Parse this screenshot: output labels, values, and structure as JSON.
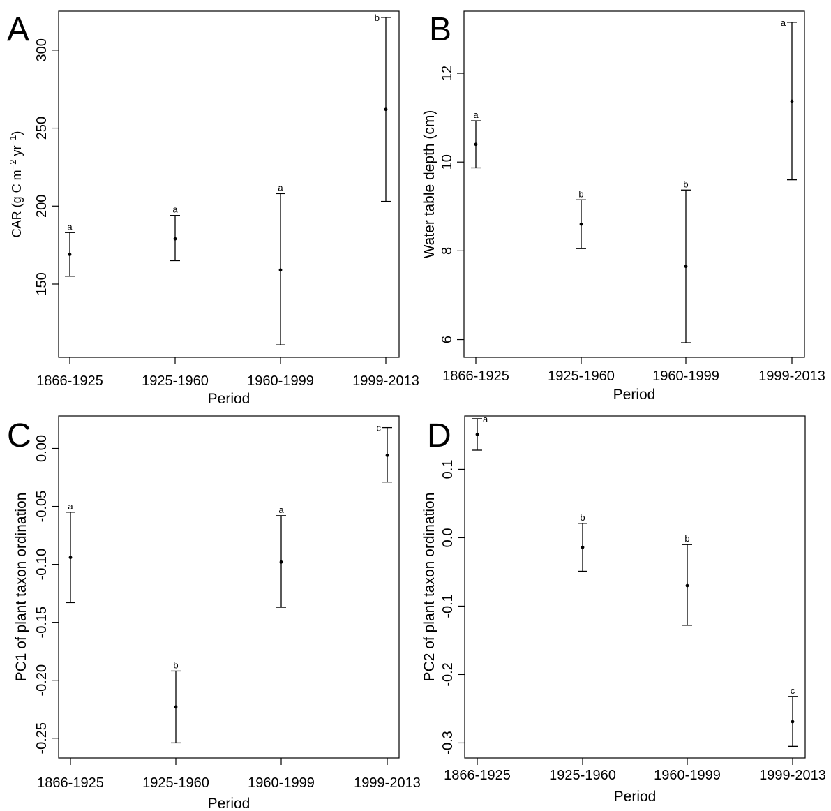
{
  "chart_data": [
    {
      "panel": "A",
      "type": "scatter",
      "categories": [
        "1866-1925",
        "1925-1960",
        "1960-1999",
        "1999-2013"
      ],
      "xlabel": "Period",
      "ylabel": "CAR (g C m",
      "ylabel_sup1": "−2",
      "ylabel_mid": " yr",
      "ylabel_sup2": "−1",
      "ylabel_end": ")",
      "ylim": [
        103,
        325
      ],
      "yticks": [
        150,
        200,
        250,
        300
      ],
      "ytick_labels": [
        "150",
        "200",
        "250",
        "300"
      ],
      "means": [
        169,
        179,
        159,
        262
      ],
      "lower": [
        155,
        165,
        111,
        203
      ],
      "upper": [
        183,
        194,
        208,
        321
      ],
      "sig": [
        "a",
        "a",
        "a",
        "b"
      ],
      "grid": false
    },
    {
      "panel": "B",
      "type": "scatter",
      "categories": [
        "1866-1925",
        "1925-1960",
        "1960-1999",
        "1999-2013"
      ],
      "xlabel": "Period",
      "ylabel": "Water table depth (cm)",
      "ylim": [
        5.6,
        13.4
      ],
      "yticks": [
        6,
        8,
        10,
        12
      ],
      "ytick_labels": [
        "6",
        "8",
        "10",
        "12"
      ],
      "means": [
        10.4,
        8.6,
        7.65,
        11.37
      ],
      "lower": [
        9.87,
        8.05,
        5.93,
        9.6
      ],
      "upper": [
        10.93,
        9.15,
        9.37,
        13.15
      ],
      "sig": [
        "a",
        "b",
        "b",
        "a"
      ],
      "grid": false
    },
    {
      "panel": "C",
      "type": "scatter",
      "categories": [
        "1866-1925",
        "1925-1960",
        "1960-1999",
        "1999-2013"
      ],
      "xlabel": "Period",
      "ylabel": "PC1 of plant taxon ordination",
      "ylim": [
        -0.267,
        0.028
      ],
      "yticks": [
        -0.25,
        -0.2,
        -0.15,
        -0.1,
        -0.05,
        0.0
      ],
      "ytick_labels": [
        "-0.25",
        "-0.20",
        "-0.15",
        "-0.10",
        "-0.05",
        "0.00"
      ],
      "means": [
        -0.094,
        -0.223,
        -0.098,
        -0.006
      ],
      "lower": [
        -0.133,
        -0.254,
        -0.137,
        -0.029
      ],
      "upper": [
        -0.055,
        -0.192,
        -0.058,
        0.018
      ],
      "sig": [
        "a",
        "b",
        "a",
        "c"
      ],
      "grid": false
    },
    {
      "panel": "D",
      "type": "scatter",
      "categories": [
        "1866-1925",
        "1925-1960",
        "1960-1999",
        "1999-2013"
      ],
      "xlabel": "Period",
      "ylabel": "PC2 of plant taxon ordination",
      "ylim": [
        -0.322,
        0.178
      ],
      "yticks": [
        -0.3,
        -0.2,
        -0.1,
        0.0,
        0.1
      ],
      "ytick_labels": [
        "-0.3",
        "-0.2",
        "-0.1",
        "0.0",
        "0.1"
      ],
      "means": [
        0.151,
        -0.014,
        -0.07,
        -0.269
      ],
      "lower": [
        0.128,
        -0.049,
        -0.128,
        -0.305
      ],
      "upper": [
        0.174,
        0.021,
        -0.01,
        -0.232
      ],
      "sig": [
        "a",
        "b",
        "b",
        "c"
      ],
      "grid": false
    }
  ]
}
